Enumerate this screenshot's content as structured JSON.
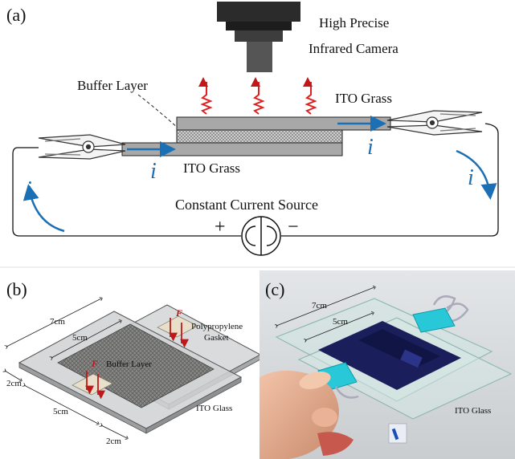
{
  "panel_a": {
    "tag": "(a)",
    "camera_line1": "High Precise",
    "camera_line2": "Infrared Camera",
    "buffer_layer": "Buffer Layer",
    "ito_top": "ITO Grass",
    "ito_bottom": "ITO Grass",
    "current_symbol": "i",
    "source": "Constant Current Source",
    "plus": "+",
    "minus": "−",
    "colors": {
      "current": "#1b6fb5",
      "heat": "#e02020"
    }
  },
  "panel_b": {
    "tag": "(b)",
    "dim_7cm": "7cm",
    "dim_5cm_top": "5cm",
    "dim_2cm_left": "2cm",
    "dim_5cm_bottom": "5cm",
    "dim_2cm_bottom": "2cm",
    "force_1": "F",
    "force_2": "F",
    "buffer_layer": "Buffer Layer",
    "gasket_line1": "Polypropylene",
    "gasket_line2": "Gasket",
    "ito_glass": "ITO Glass"
  },
  "panel_c": {
    "tag": "(c)",
    "dim_7cm": "7cm",
    "dim_5cm": "5cm",
    "ito_glass": "ITO Glass"
  }
}
